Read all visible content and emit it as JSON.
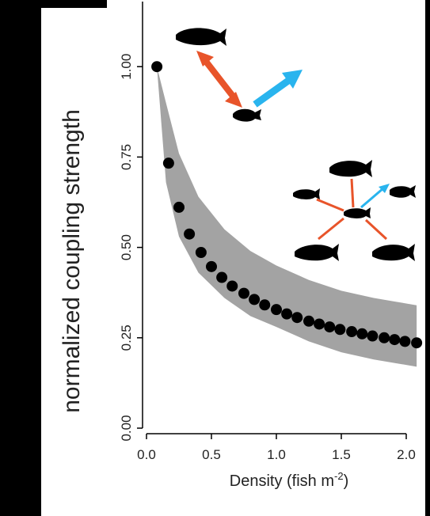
{
  "chart_data": {
    "type": "scatter",
    "ylabel": "normalized coupling strength",
    "xlabel_parts": [
      "Density (fish m",
      "-2",
      ")"
    ],
    "x": [
      0.08,
      0.17,
      0.25,
      0.33,
      0.42,
      0.5,
      0.58,
      0.66,
      0.75,
      0.83,
      0.91,
      1.0,
      1.08,
      1.16,
      1.25,
      1.33,
      1.41,
      1.49,
      1.58,
      1.66,
      1.74,
      1.83,
      1.91,
      1.99,
      2.08
    ],
    "values": [
      1.0,
      0.733,
      0.611,
      0.537,
      0.486,
      0.447,
      0.417,
      0.393,
      0.373,
      0.356,
      0.341,
      0.328,
      0.316,
      0.306,
      0.296,
      0.288,
      0.28,
      0.273,
      0.267,
      0.261,
      0.255,
      0.25,
      0.245,
      0.24,
      0.236
    ],
    "color": "#000000",
    "band": {
      "x": [
        0.08,
        0.15,
        0.25,
        0.4,
        0.6,
        0.8,
        1.0,
        1.25,
        1.5,
        1.75,
        2.08
      ],
      "upper": [
        1.0,
        0.9,
        0.76,
        0.64,
        0.55,
        0.49,
        0.45,
        0.41,
        0.38,
        0.36,
        0.34
      ],
      "lower": [
        1.0,
        0.68,
        0.53,
        0.43,
        0.36,
        0.31,
        0.28,
        0.24,
        0.21,
        0.19,
        0.17
      ],
      "color": "#a3a3a3"
    },
    "xlim": [
      0,
      2.1
    ],
    "xticks": [
      {
        "value": 0,
        "label": "0.0"
      },
      0.5,
      {
        "value": 1,
        "label": "1.0"
      },
      1.5,
      {
        "value": 2,
        "label": "2.0"
      }
    ],
    "ylim": [
      0,
      1.18
    ],
    "yticks": [
      {
        "value": 0,
        "label": "0.00"
      },
      {
        "value": 0.25,
        "label": "0.25"
      },
      {
        "value": 0.5,
        "label": "0.50"
      },
      {
        "value": 0.75,
        "label": "0.75"
      },
      {
        "value": 1,
        "label": "1.00"
      }
    ]
  }
}
